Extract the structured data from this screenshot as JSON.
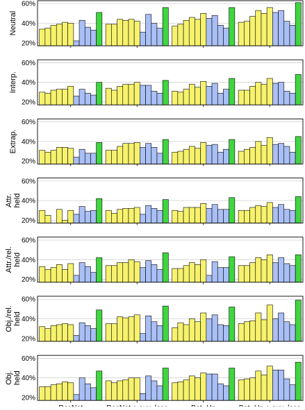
{
  "chart_data": {
    "type": "bar",
    "categories": [
      "ResNet",
      "ResNet + aux. loss",
      "Bot.-Up",
      "Bot.-Up + aux. loss"
    ],
    "ylim": [
      17,
      63
    ],
    "yticks": [
      20,
      40,
      60
    ],
    "ytick_labels": [
      "20%",
      "40%",
      "60%"
    ],
    "grid": "horizontal",
    "colors": [
      "#f7f26e",
      "#f7f26e",
      "#f7f26e",
      "#f7f26e",
      "#f7f26e",
      "#f7f26e",
      "#a9bff5",
      "#a9bff5",
      "#a9bff5",
      "#a9bff5",
      "#3fd63f"
    ],
    "panels": [
      {
        "ylabel": [
          "Neutral"
        ],
        "groups": [
          [
            34,
            35,
            38,
            39,
            41,
            40,
            22,
            43,
            36,
            33,
            51
          ],
          [
            39,
            39,
            44,
            43,
            44,
            42,
            31,
            49,
            40,
            35,
            56
          ],
          [
            37,
            39,
            43,
            46,
            44,
            50,
            45,
            48,
            38,
            35,
            56
          ],
          [
            41,
            42,
            47,
            53,
            50,
            56,
            51,
            53,
            42,
            38,
            61
          ]
        ]
      },
      {
        "ylabel": [
          "Interp."
        ],
        "groups": [
          [
            30,
            29,
            32,
            33,
            33,
            36,
            26,
            33,
            29,
            27,
            40
          ],
          [
            34,
            32,
            36,
            38,
            38,
            40,
            37,
            37,
            31,
            29,
            42
          ],
          [
            31,
            30,
            33,
            38,
            35,
            41,
            36,
            39,
            29,
            33,
            44
          ],
          [
            32,
            32,
            36,
            40,
            38,
            44,
            39,
            40,
            31,
            29,
            48
          ]
        ]
      },
      {
        "ylabel": [
          "Extrap."
        ],
        "groups": [
          [
            31,
            29,
            31,
            34,
            34,
            33,
            24,
            32,
            28,
            28,
            39
          ],
          [
            31,
            31,
            35,
            38,
            38,
            39,
            34,
            38,
            34,
            28,
            42
          ],
          [
            29,
            30,
            32,
            35,
            33,
            39,
            36,
            37,
            29,
            32,
            42
          ],
          [
            30,
            32,
            34,
            40,
            36,
            44,
            37,
            38,
            35,
            29,
            45
          ]
        ]
      },
      {
        "ylabel": [
          "Attr.",
          "held"
        ],
        "groups": [
          [
            30,
            25,
            15,
            31,
            20,
            30,
            26,
            34,
            29,
            30,
            42
          ],
          [
            30,
            27,
            31,
            32,
            32,
            33,
            26,
            35,
            32,
            30,
            41
          ],
          [
            30,
            29,
            33,
            33,
            33,
            37,
            32,
            36,
            31,
            31,
            43
          ],
          [
            30,
            30,
            33,
            35,
            34,
            38,
            33,
            36,
            31,
            30,
            44
          ]
        ]
      },
      {
        "ylabel": [
          "Attr./rel.",
          "held"
        ],
        "groups": [
          [
            33,
            30,
            32,
            35,
            30,
            36,
            24,
            37,
            33,
            27,
            42
          ],
          [
            34,
            34,
            37,
            37,
            40,
            38,
            32,
            39,
            35,
            30,
            47
          ],
          [
            31,
            31,
            34,
            37,
            35,
            40,
            24,
            38,
            32,
            32,
            43
          ],
          [
            34,
            34,
            37,
            42,
            40,
            45,
            37,
            42,
            36,
            34,
            45
          ]
        ]
      },
      {
        "ylabel": [
          "Obj./rel.",
          "held"
        ],
        "groups": [
          [
            32,
            30,
            33,
            34,
            35,
            34,
            23,
            36,
            33,
            30,
            49
          ],
          [
            35,
            35,
            42,
            41,
            42,
            44,
            25,
            43,
            37,
            33,
            53
          ],
          [
            31,
            36,
            34,
            40,
            37,
            46,
            40,
            44,
            34,
            33,
            52
          ],
          [
            35,
            37,
            38,
            46,
            39,
            54,
            40,
            46,
            37,
            34,
            59
          ]
        ]
      },
      {
        "ylabel": [
          "Obj.",
          "held"
        ],
        "groups": [
          [
            31,
            31,
            33,
            34,
            36,
            35,
            23,
            40,
            34,
            30,
            47
          ],
          [
            37,
            35,
            37,
            38,
            40,
            40,
            24,
            42,
            37,
            32,
            50
          ],
          [
            35,
            36,
            38,
            42,
            40,
            45,
            44,
            44,
            34,
            32,
            50
          ],
          [
            38,
            39,
            40,
            47,
            43,
            52,
            48,
            48,
            39,
            33,
            56
          ]
        ]
      }
    ]
  }
}
